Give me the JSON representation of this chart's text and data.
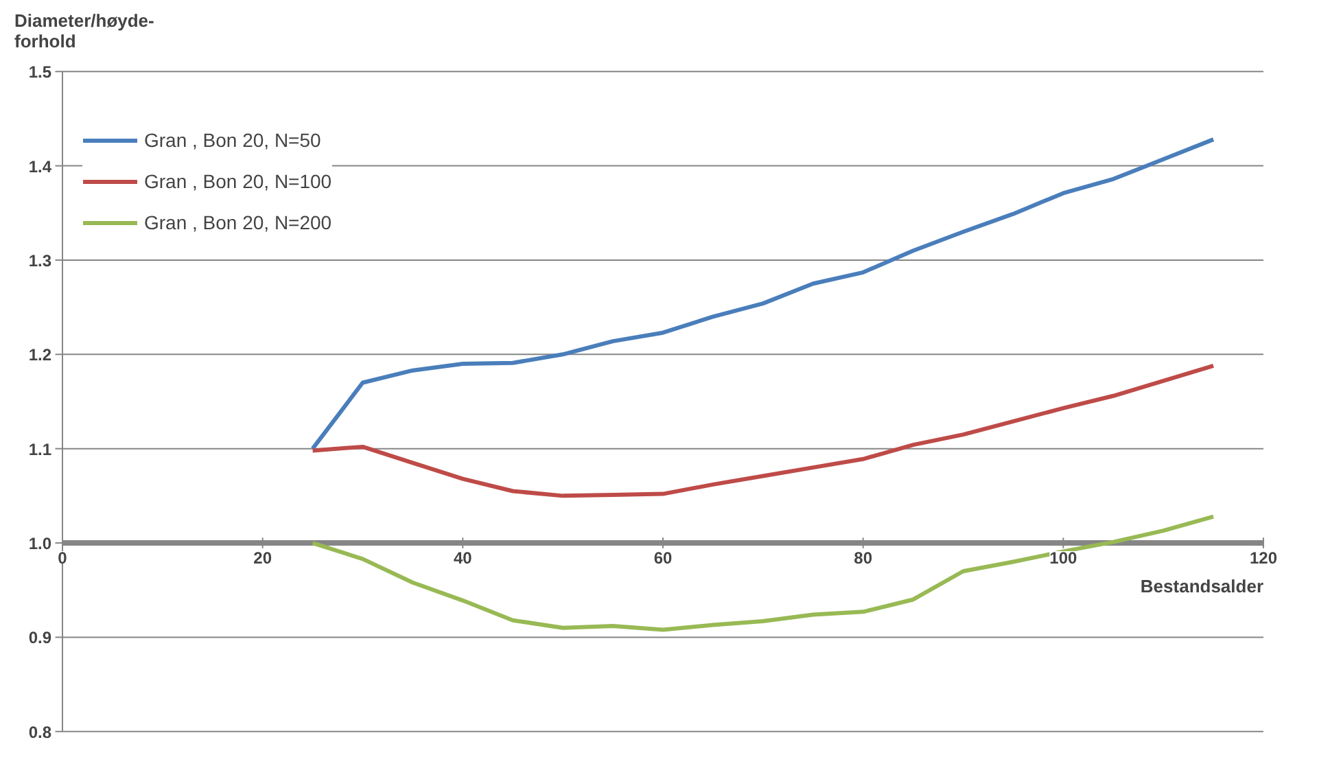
{
  "chart_data": {
    "type": "line",
    "ylabel": "Diameter/høyde-\nforhold",
    "xlabel": "Bestandsalder",
    "x": [
      25,
      30,
      35,
      40,
      45,
      50,
      55,
      60,
      65,
      70,
      75,
      80,
      85,
      90,
      95,
      100,
      105,
      110,
      115
    ],
    "series": [
      {
        "name": "Gran , Bon 20, N=50",
        "color": "#4a7ebb",
        "values": [
          1.1,
          1.17,
          1.183,
          1.19,
          1.191,
          1.2,
          1.214,
          1.223,
          1.24,
          1.254,
          1.275,
          1.287,
          1.31,
          1.33,
          1.349,
          1.371,
          1.386,
          1.407,
          1.428
        ]
      },
      {
        "name": "Gran , Bon 20, N=100",
        "color": "#be4b48",
        "values": [
          1.098,
          1.102,
          1.085,
          1.068,
          1.055,
          1.05,
          1.051,
          1.052,
          1.062,
          1.071,
          1.08,
          1.089,
          1.104,
          1.115,
          1.129,
          1.143,
          1.156,
          1.172,
          1.188
        ]
      },
      {
        "name": "Gran , Bon 20, N=200",
        "color": "#98b954",
        "values": [
          1.0,
          0.983,
          0.958,
          0.939,
          0.918,
          0.91,
          0.912,
          0.908,
          0.913,
          0.917,
          0.924,
          0.927,
          0.94,
          0.97,
          0.98,
          0.991,
          1.001,
          1.013,
          1.028
        ]
      }
    ],
    "xlim": [
      0,
      120
    ],
    "xticks": [
      0,
      20,
      40,
      60,
      80,
      100,
      120
    ],
    "ylim": [
      0.8,
      1.5
    ],
    "yticks": [
      {
        "value": 0.8,
        "label": "0.8"
      },
      {
        "value": 0.9,
        "label": "0.9"
      },
      {
        "value": 1.0,
        "label": "1.0"
      },
      {
        "value": 1.1,
        "label": "1.1"
      },
      {
        "value": 1.2,
        "label": "1.2"
      },
      {
        "value": 1.3,
        "label": "1.3"
      },
      {
        "value": 1.4,
        "label": "1.4"
      },
      {
        "value": 1.5,
        "label": "1.5"
      }
    ],
    "grid": "y",
    "legend": "top left",
    "marker": "none",
    "line_style": "solid"
  }
}
